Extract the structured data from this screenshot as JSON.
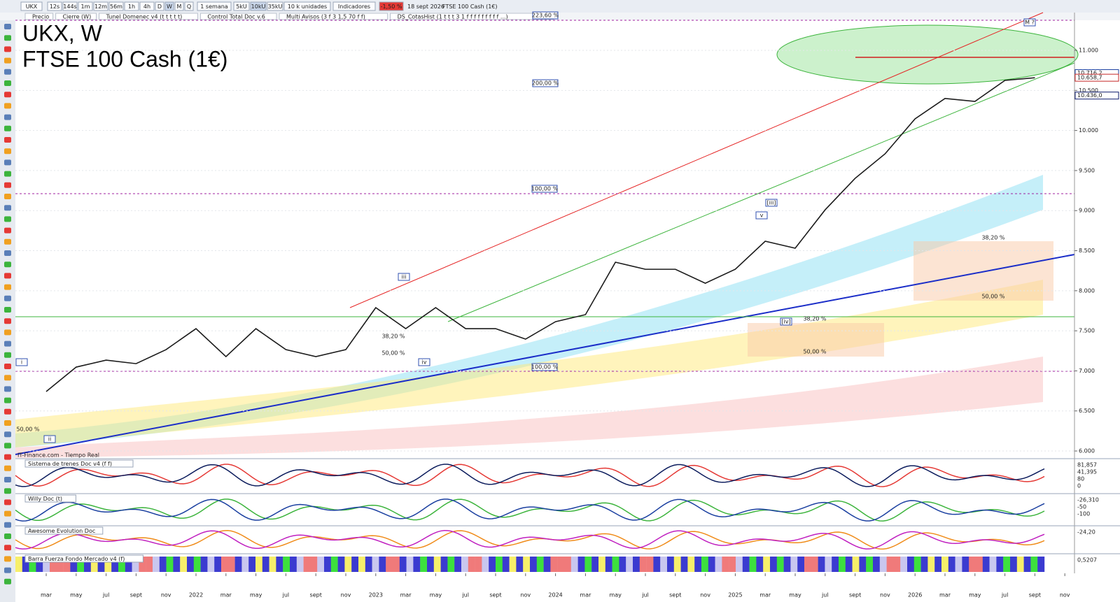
{
  "toolbar": {
    "symbol": "UKX",
    "timeframes": [
      "12s",
      "144s",
      "1m",
      "12m",
      "56m",
      "1h",
      "4h",
      "D",
      "W",
      "M",
      "Q"
    ],
    "period": "1 semana",
    "units": [
      "5kU",
      "10kU",
      "35kU"
    ],
    "units_label": "10 k unidades",
    "indicators": "Indicadores",
    "change": "-1,50 %",
    "date": "18 sept 2026",
    "instrument": "FTSE 100 Cash (1€)"
  },
  "studies": [
    "Precio",
    "Cierre (W)",
    "Tunel Domenec v4 (t t t t t)",
    "Control Total Doc v.6",
    "Multi Avisos (3 f 3 1,5 70 f f)",
    "DS_CotasHist (1 t t t 3 1 f f f f f f f f f ...)"
  ],
  "title": "UKX, W",
  "subtitle": "FTSE 100 Cash (1€)",
  "source": "IT-Finance.com - Tiempo Real",
  "chart_data": {
    "type": "line",
    "color": "#1b1b1b",
    "categories": [
      "mar",
      "may",
      "jul",
      "sept",
      "nov",
      "2022",
      "mar",
      "may",
      "jul",
      "sept",
      "nov",
      "2023",
      "mar",
      "may",
      "jul",
      "sept",
      "nov",
      "2024",
      "mar",
      "may",
      "jul",
      "sept",
      "nov",
      "2025",
      "mar",
      "may",
      "jul",
      "sept",
      "nov",
      "2026",
      "mar",
      "may",
      "jul",
      "sept",
      "nov"
    ],
    "values": [
      6742,
      7047,
      7134,
      7090,
      7265,
      7527,
      7178,
      7527,
      7265,
      7178,
      7265,
      7789,
      7527,
      7789,
      7527,
      7527,
      7396,
      7614,
      7702,
      8356,
      8268,
      8268,
      8094,
      8268,
      8618,
      8531,
      9010,
      9403,
      9709,
      10145,
      10400,
      10363,
      10625,
      10658,
      null
    ],
    "ylim": [
      5913,
      11454
    ],
    "yticks": [
      {
        "value": 6000,
        "label": "6.000"
      },
      {
        "value": 6500,
        "label": "6.500"
      },
      {
        "value": 7000,
        "label": "7.000"
      },
      {
        "value": 7500,
        "label": "7.500"
      },
      {
        "value": 8000,
        "label": "8.000"
      },
      {
        "value": 8500,
        "label": "8.500"
      },
      {
        "value": 9000,
        "label": "9.000"
      },
      {
        "value": 9500,
        "label": "9.500"
      },
      {
        "value": 10000,
        "label": "10.000"
      },
      {
        "value": 10500,
        "label": "10.500"
      },
      {
        "value": 11000,
        "label": "11.000"
      }
    ],
    "grid": true
  },
  "price_labels": [
    {
      "value": 10716.2,
      "label": "10.716,2",
      "color": "#1a3fa0"
    },
    {
      "value": 10658.7,
      "label": "10.658,7",
      "color": "#c62828"
    },
    {
      "value": 10436.0,
      "label": "10.436,0",
      "color": "#0d1b6e"
    }
  ],
  "annotations": [
    "223,60 %",
    "200,00 %",
    "100,00 %",
    "100,00 %",
    "38,20 %",
    "50,00 %",
    "38,20 %",
    "50,00 %",
    "38,20 %",
    "50,00 %",
    "50,00 %",
    "M ?",
    "[iii]",
    "[iv]",
    "v",
    "iii",
    "iv",
    "i",
    "ii"
  ],
  "panels": [
    {
      "name": "Sistema de trenes Doc v4 (f f)",
      "labels": [
        "81,857",
        "41,395",
        "80",
        "0"
      ]
    },
    {
      "name": "Willy Doc (t)",
      "labels": [
        "-26,310",
        "-50",
        "-100"
      ]
    },
    {
      "name": "Awesome Evolution Doc",
      "labels": [
        "-24,20"
      ]
    },
    {
      "name": "Barra Fuerza Fondo Mercado v4 (f)",
      "labels": [
        "0,5207"
      ]
    }
  ]
}
